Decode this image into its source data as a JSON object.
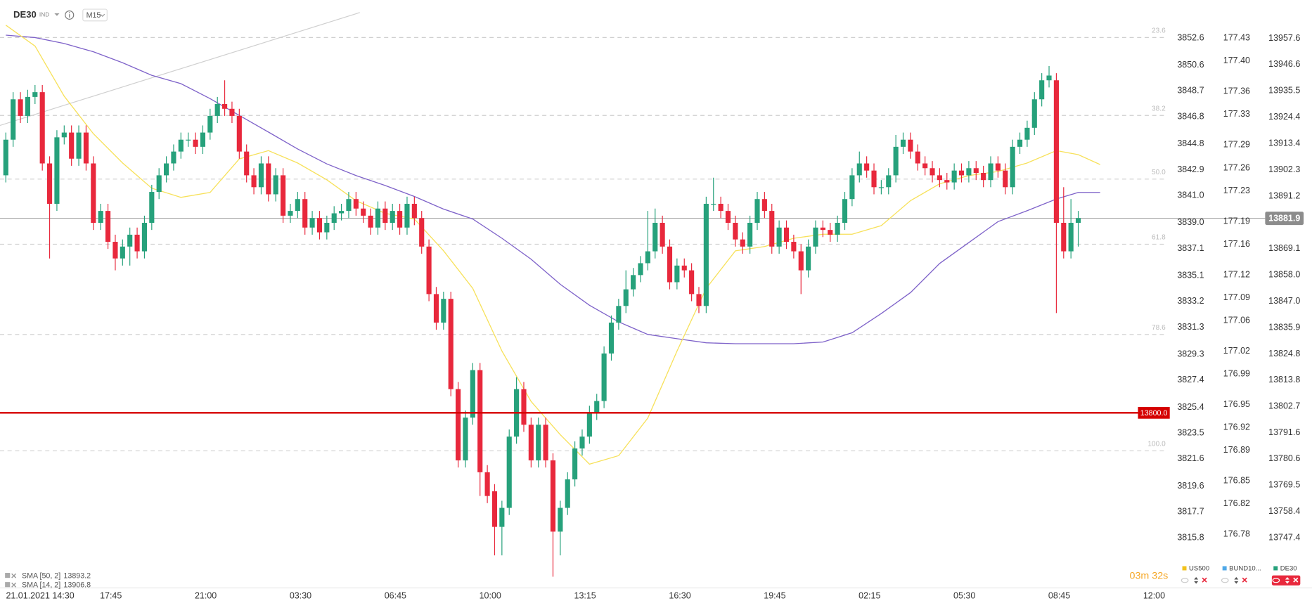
{
  "chart_data": {
    "type": "candlestick",
    "symbol": "DE30",
    "symbol_tag": "IND",
    "timeframe": "M15",
    "up_color": "#26a17b",
    "down_color": "#e8283c",
    "candles": [
      [
        13900,
        13918,
        13897,
        13915
      ],
      [
        13915,
        13935,
        13912,
        13932
      ],
      [
        13932,
        13935,
        13922,
        13925
      ],
      [
        13925,
        13936,
        13922,
        13933
      ],
      [
        13933,
        13938,
        13930,
        13935
      ],
      [
        13935,
        13938,
        13902,
        13905
      ],
      [
        13905,
        13908,
        13865,
        13888
      ],
      [
        13888,
        13919,
        13885,
        13916
      ],
      [
        13916,
        13921,
        13913,
        13918
      ],
      [
        13918,
        13921,
        13904,
        13907
      ],
      [
        13907,
        13921,
        13904,
        13918
      ],
      [
        13918,
        13921,
        13902,
        13905
      ],
      [
        13905,
        13908,
        13877,
        13880
      ],
      [
        13880,
        13888,
        13877,
        13885
      ],
      [
        13885,
        13888,
        13869,
        13872
      ],
      [
        13872,
        13875,
        13860,
        13865
      ],
      [
        13865,
        13873,
        13862,
        13870
      ],
      [
        13870,
        13878,
        13862,
        13875
      ],
      [
        13875,
        13878,
        13865,
        13868
      ],
      [
        13868,
        13883,
        13865,
        13880
      ],
      [
        13880,
        13896,
        13877,
        13893
      ],
      [
        13893,
        13903,
        13890,
        13900
      ],
      [
        13900,
        13908,
        13897,
        13905
      ],
      [
        13905,
        13913,
        13902,
        13910
      ],
      [
        13910,
        13918,
        13907,
        13915
      ],
      [
        13915,
        13918,
        13912,
        13915
      ],
      [
        13915,
        13918,
        13909,
        13912
      ],
      [
        13912,
        13921,
        13909,
        13918
      ],
      [
        13918,
        13928,
        13915,
        13925
      ],
      [
        13925,
        13933,
        13922,
        13930
      ],
      [
        13930,
        13940,
        13925,
        13928
      ],
      [
        13928,
        13931,
        13922,
        13925
      ],
      [
        13925,
        13928,
        13907,
        13910
      ],
      [
        13910,
        13913,
        13897,
        13900
      ],
      [
        13900,
        13903,
        13892,
        13895
      ],
      [
        13895,
        13908,
        13892,
        13905
      ],
      [
        13905,
        13908,
        13889,
        13892
      ],
      [
        13892,
        13903,
        13889,
        13900
      ],
      [
        13900,
        13903,
        13880,
        13883
      ],
      [
        13883,
        13888,
        13880,
        13885
      ],
      [
        13885,
        13893,
        13882,
        13890
      ],
      [
        13890,
        13893,
        13875,
        13878
      ],
      [
        13878,
        13885,
        13875,
        13882
      ],
      [
        13882,
        13885,
        13873,
        13876
      ],
      [
        13876,
        13883,
        13873,
        13880
      ],
      [
        13880,
        13887,
        13877,
        13884
      ],
      [
        13884,
        13888,
        13881,
        13885
      ],
      [
        13885,
        13893,
        13882,
        13890
      ],
      [
        13890,
        13893,
        13883,
        13886
      ],
      [
        13886,
        13889,
        13880,
        13883
      ],
      [
        13883,
        13886,
        13875,
        13878
      ],
      [
        13878,
        13889,
        13875,
        13886
      ],
      [
        13886,
        13889,
        13877,
        13880
      ],
      [
        13880,
        13888,
        13877,
        13885
      ],
      [
        13885,
        13888,
        13875,
        13878
      ],
      [
        13878,
        13891,
        13875,
        13888
      ],
      [
        13888,
        13891,
        13879,
        13882
      ],
      [
        13882,
        13885,
        13867,
        13870
      ],
      [
        13870,
        13873,
        13847,
        13850
      ],
      [
        13850,
        13853,
        13835,
        13838
      ],
      [
        13838,
        13851,
        13835,
        13848
      ],
      [
        13848,
        13851,
        13807,
        13810
      ],
      [
        13810,
        13813,
        13777,
        13780
      ],
      [
        13780,
        13801,
        13777,
        13798
      ],
      [
        13798,
        13821,
        13795,
        13818
      ],
      [
        13818,
        13821,
        13765,
        13775
      ],
      [
        13775,
        13778,
        13762,
        13765
      ],
      [
        13767,
        13770,
        13740,
        13752
      ],
      [
        13752,
        13763,
        13740,
        13760
      ],
      [
        13760,
        13793,
        13757,
        13790
      ],
      [
        13790,
        13815,
        13787,
        13810
      ],
      [
        13810,
        13813,
        13792,
        13795
      ],
      [
        13795,
        13798,
        13777,
        13780
      ],
      [
        13780,
        13798,
        13777,
        13795
      ],
      [
        13795,
        13798,
        13777,
        13780
      ],
      [
        13780,
        13783,
        13731,
        13750
      ],
      [
        13750,
        13763,
        13740,
        13760
      ],
      [
        13760,
        13775,
        13757,
        13772
      ],
      [
        13772,
        13788,
        13769,
        13785
      ],
      [
        13785,
        13793,
        13782,
        13790
      ],
      [
        13790,
        13803,
        13787,
        13800
      ],
      [
        13800,
        13808,
        13797,
        13805
      ],
      [
        13805,
        13828,
        13802,
        13825
      ],
      [
        13825,
        13841,
        13822,
        13838
      ],
      [
        13838,
        13848,
        13835,
        13845
      ],
      [
        13845,
        13860,
        13842,
        13852
      ],
      [
        13852,
        13861,
        13849,
        13858
      ],
      [
        13858,
        13866,
        13855,
        13863
      ],
      [
        13863,
        13885,
        13860,
        13868
      ],
      [
        13868,
        13886,
        13865,
        13880
      ],
      [
        13880,
        13883,
        13867,
        13870
      ],
      [
        13870,
        13873,
        13852,
        13855
      ],
      [
        13855,
        13865,
        13852,
        13862
      ],
      [
        13862,
        13865,
        13857,
        13860
      ],
      [
        13860,
        13863,
        13847,
        13850
      ],
      [
        13850,
        13853,
        13842,
        13845
      ],
      [
        13845,
        13891,
        13842,
        13888
      ],
      [
        13888,
        13899,
        13885,
        13888
      ],
      [
        13888,
        13891,
        13882,
        13885
      ],
      [
        13885,
        13888,
        13877,
        13880
      ],
      [
        13880,
        13883,
        13870,
        13873
      ],
      [
        13873,
        13876,
        13867,
        13870
      ],
      [
        13870,
        13883,
        13867,
        13880
      ],
      [
        13880,
        13893,
        13877,
        13890
      ],
      [
        13890,
        13893,
        13882,
        13885
      ],
      [
        13885,
        13888,
        13867,
        13870
      ],
      [
        13870,
        13881,
        13867,
        13878
      ],
      [
        13878,
        13881,
        13869,
        13872
      ],
      [
        13872,
        13875,
        13865,
        13868
      ],
      [
        13868,
        13871,
        13850,
        13860
      ],
      [
        13860,
        13873,
        13857,
        13870
      ],
      [
        13870,
        13881,
        13867,
        13878
      ],
      [
        13878,
        13881,
        13874,
        13877
      ],
      [
        13877,
        13880,
        13872,
        13875
      ],
      [
        13875,
        13883,
        13872,
        13880
      ],
      [
        13880,
        13893,
        13877,
        13890
      ],
      [
        13890,
        13903,
        13887,
        13900
      ],
      [
        13900,
        13910,
        13897,
        13905
      ],
      [
        13905,
        13908,
        13899,
        13902
      ],
      [
        13902,
        13905,
        13892,
        13895
      ],
      [
        13895,
        13898,
        13892,
        13895
      ],
      [
        13895,
        13903,
        13892,
        13900
      ],
      [
        13900,
        13917,
        13897,
        13912
      ],
      [
        13912,
        13918,
        13909,
        13915
      ],
      [
        13915,
        13918,
        13907,
        13910
      ],
      [
        13910,
        13913,
        13902,
        13905
      ],
      [
        13905,
        13908,
        13900,
        13903
      ],
      [
        13903,
        13906,
        13897,
        13900
      ],
      [
        13900,
        13903,
        13895,
        13898
      ],
      [
        13898,
        13901,
        13894,
        13897
      ],
      [
        13897,
        13905,
        13894,
        13902
      ],
      [
        13902,
        13905,
        13897,
        13900
      ],
      [
        13900,
        13906,
        13897,
        13903
      ],
      [
        13903,
        13906,
        13898,
        13901
      ],
      [
        13901,
        13904,
        13895,
        13898
      ],
      [
        13898,
        13908,
        13895,
        13905
      ],
      [
        13905,
        13908,
        13899,
        13902
      ],
      [
        13902,
        13905,
        13892,
        13895
      ],
      [
        13895,
        13915,
        13892,
        13912
      ],
      [
        13912,
        13918,
        13909,
        13915
      ],
      [
        13915,
        13923,
        13912,
        13920
      ],
      [
        13920,
        13935,
        13917,
        13932
      ],
      [
        13932,
        13943,
        13929,
        13940
      ],
      [
        13940,
        13946,
        13937,
        13942
      ],
      [
        13940,
        13943,
        13842,
        13880
      ],
      [
        13880,
        13895,
        13865,
        13868
      ],
      [
        13868,
        13890,
        13865,
        13880
      ],
      [
        13880,
        13885,
        13870,
        13882
      ]
    ],
    "xlim": [
      -0.8,
      159.2
    ],
    "xticks": [
      {
        "value": 4.7,
        "label": "21.01.2021  14:30"
      },
      {
        "value": 14.4,
        "label": "17:45"
      },
      {
        "value": 27.4,
        "label": "21:00"
      },
      {
        "value": 40.4,
        "label": "03:30"
      },
      {
        "value": 53.4,
        "label": "06:45"
      },
      {
        "value": 66.4,
        "label": "10:00"
      },
      {
        "value": 79.4,
        "label": "13:15"
      },
      {
        "value": 92.4,
        "label": "16:30"
      },
      {
        "value": 105.4,
        "label": "19:45"
      },
      {
        "value": 118.4,
        "label": "02:15"
      },
      {
        "value": 131.4,
        "label": "05:30"
      },
      {
        "value": 144.4,
        "label": "08:45"
      },
      {
        "value": 157.4,
        "label": "12:00"
      }
    ],
    "ylim": [
      13726.3,
      13973.8
    ],
    "yticks": [
      13957.6,
      13946.6,
      13935.5,
      13924.4,
      13913.4,
      13902.3,
      13891.2,
      13869.1,
      {
        "value": 13858,
        "label": "13858.0"
      },
      {
        "value": 13847,
        "label": "13847.0"
      },
      13835.9,
      13824.8,
      13813.8,
      13802.7,
      13791.6,
      13780.6,
      13769.5,
      13758.4,
      13747.4
    ],
    "y2lim": [
      3812.1,
      3855.4
    ],
    "y2ticks": [
      3852.6,
      3850.6,
      3848.7,
      3846.8,
      3844.8,
      3842.9,
      {
        "value": 3841,
        "label": "3841.0"
      },
      {
        "value": 3839,
        "label": "3839.0"
      },
      3837.1,
      3835.1,
      3833.2,
      3831.3,
      3829.3,
      3827.4,
      3825.4,
      3823.5,
      3821.6,
      3819.6,
      3817.7,
      3815.8
    ],
    "y3lim": [
      176.71,
      177.48
    ],
    "y3ticks": [
      177.43,
      {
        "value": 177.4,
        "label": "177.40"
      },
      177.36,
      177.33,
      177.29,
      177.26,
      177.23,
      177.19,
      177.16,
      177.12,
      177.09,
      177.06,
      177.02,
      176.99,
      176.95,
      176.92,
      176.89,
      176.85,
      176.82,
      176.78
    ],
    "series": [
      {
        "name": "SMA [50, 2]",
        "color": "#7e62c9",
        "last_value": 13893.2,
        "x": [
          0,
          4,
          8,
          12,
          16,
          20,
          24,
          28,
          32,
          36,
          40,
          44,
          48,
          52,
          56,
          60,
          64,
          68,
          72,
          76,
          80,
          84,
          88,
          92,
          96,
          100,
          104,
          108,
          112,
          116,
          120,
          124,
          128,
          132,
          136,
          140,
          144,
          147,
          150
        ],
        "values": [
          13959.0,
          13958.0,
          13955.5,
          13952.0,
          13947.4,
          13942.1,
          13938.6,
          13932.3,
          13925.2,
          13918.2,
          13911.1,
          13904.8,
          13899.9,
          13895.7,
          13891.1,
          13885.8,
          13881.6,
          13873.5,
          13864.7,
          13854.1,
          13845.3,
          13838.3,
          13833.0,
          13831.2,
          13829.5,
          13829.1,
          13829.1,
          13829.1,
          13829.8,
          13833.7,
          13841.8,
          13850.6,
          13862.9,
          13871.7,
          13880.5,
          13885.1,
          13890.0,
          13892.8,
          13892.8
        ]
      },
      {
        "name": "SMA [14, 2]",
        "color": "#f7e15a",
        "last_value": 13906.8,
        "x": [
          0,
          4,
          8,
          12,
          16,
          20,
          24,
          28,
          32,
          36,
          40,
          44,
          48,
          52,
          56,
          60,
          64,
          68,
          72,
          76,
          80,
          84,
          88,
          92,
          96,
          100,
          104,
          108,
          112,
          116,
          120,
          124,
          128,
          132,
          136,
          140,
          144,
          147,
          150
        ],
        "values": [
          13963.2,
          13954.4,
          13933.3,
          13917.5,
          13905.2,
          13894.6,
          13890.7,
          13892.8,
          13906.9,
          13910.4,
          13905.2,
          13898.1,
          13889.3,
          13884.0,
          13881.6,
          13868.2,
          13852.4,
          13826.0,
          13804.8,
          13790.8,
          13778.4,
          13782.0,
          13797.8,
          13826.0,
          13852.4,
          13868.2,
          13870.0,
          13873.5,
          13875.2,
          13875.2,
          13878.8,
          13889.3,
          13896.4,
          13899.9,
          13901.6,
          13905.2,
          13910.4,
          13908.7,
          13904.5
        ]
      }
    ],
    "fib_levels": [
      {
        "value": 13958,
        "label": "23.6"
      },
      {
        "value": 13925.2,
        "label": "38.2"
      },
      {
        "value": 13898.4,
        "label": "50.0"
      },
      {
        "value": 13871,
        "label": "61.8"
      },
      {
        "value": 13833,
        "label": "78.6"
      },
      {
        "value": 13784,
        "label": "100.0"
      }
    ],
    "price_line": 13881.9,
    "horizontal_line": {
      "value": 13800,
      "label": "13800.0",
      "color": "#d50000"
    },
    "countdown": "03m 32s",
    "instruments": [
      {
        "name": "US500",
        "color": "#f2c21b"
      },
      {
        "name": "BUND10...",
        "color": "#4fa8e8"
      },
      {
        "name": "DE30",
        "color": "#26a17b"
      }
    ]
  }
}
